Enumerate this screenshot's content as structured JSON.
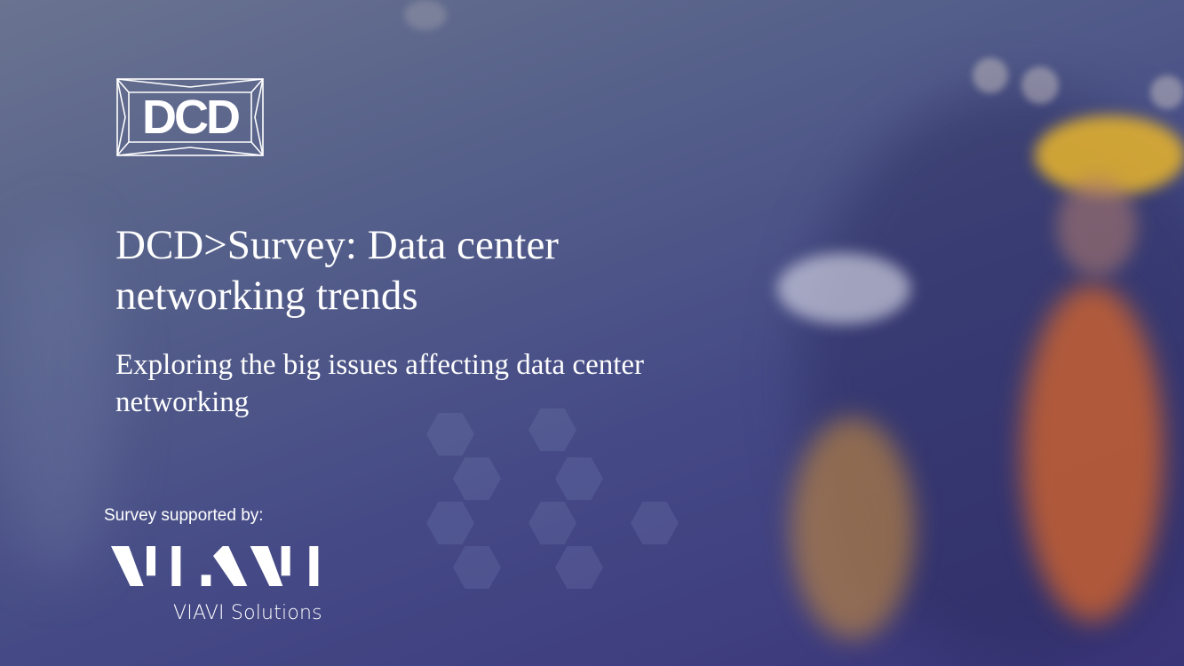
{
  "brand_logo": {
    "text": "DCD"
  },
  "title": "DCD>Survey: Data center networking trends",
  "subtitle": "Exploring the big issues affecting data center networking",
  "sponsor": {
    "label": "Survey supported by:",
    "logo_text": "VIAVI",
    "name": "VIAVI Solutions"
  },
  "colors": {
    "background_top": "#6a7390",
    "background_bottom": "#3a3478",
    "text": "#ffffff",
    "vest_orange": "#d9662a",
    "helmet_yellow": "#e9b52c"
  }
}
